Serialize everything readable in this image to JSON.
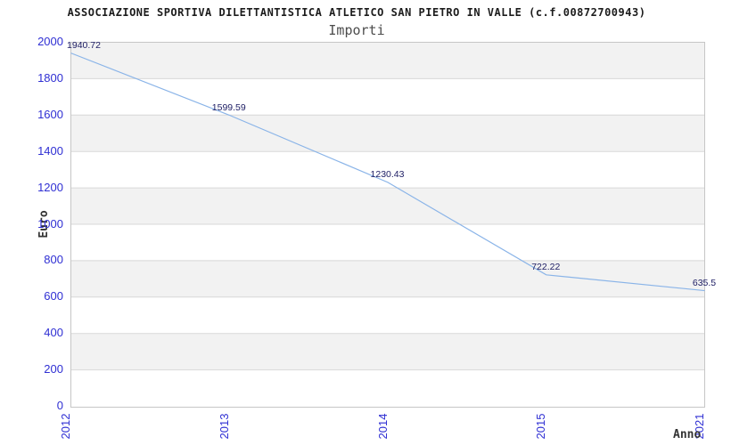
{
  "header": {
    "title": "ASSOCIAZIONE SPORTIVA DILETTANTISTICA ATLETICO SAN PIETRO IN VALLE (c.f.00872700943)",
    "subtitle": "Importi"
  },
  "chart_data": {
    "type": "line",
    "title": "Importi",
    "categories": [
      "2012",
      "2013",
      "2014",
      "2015",
      "2021"
    ],
    "series": [
      {
        "name": "Importi",
        "values": [
          1940.72,
          1599.59,
          1230.43,
          722.22,
          635.5
        ],
        "point_labels": [
          "1940.72",
          "1599.59",
          "1230.43",
          "722.22",
          "635.5"
        ]
      }
    ],
    "xlabel": "Anno",
    "ylabel": "Euro",
    "ylim": [
      0,
      2000
    ],
    "y_ticks": [
      0,
      200,
      400,
      600,
      800,
      1000,
      1200,
      1400,
      1600,
      1800,
      2000
    ],
    "grid": "horizontal-bands-alternating",
    "legend_position": "none",
    "colors": {
      "line": "#8ab4e8",
      "tick_text": "#2f2fd3",
      "point_label_text": "#202066",
      "band_gray": "#f2f2f2",
      "band_white": "#ffffff",
      "gridline": "#d8d8d8",
      "plot_border": "#c6c6c6",
      "title_text": "#1c1c1c",
      "subtitle_text": "#4d4d4d",
      "axis_title_text": "#333333"
    }
  }
}
